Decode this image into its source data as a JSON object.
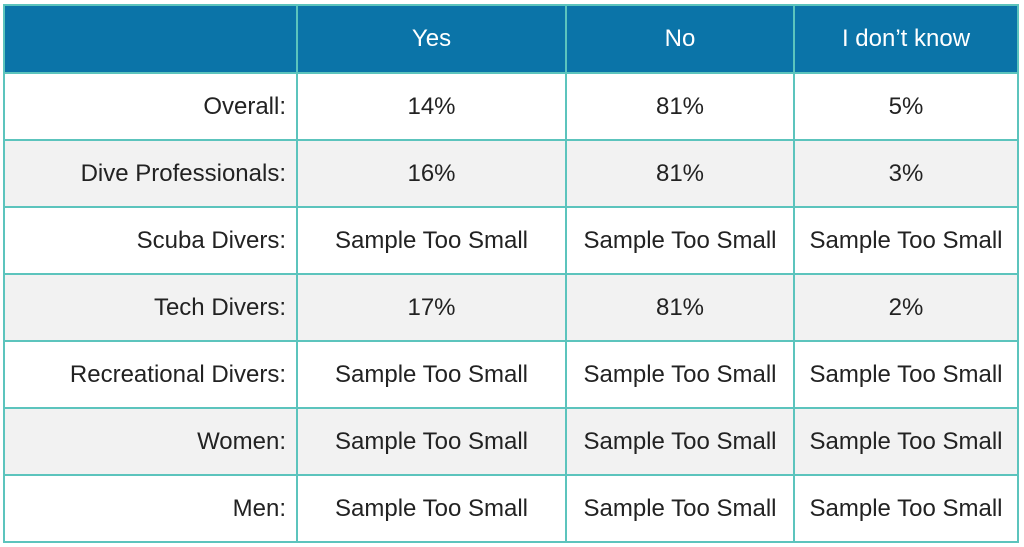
{
  "table": {
    "header": {
      "corner": "",
      "columns": [
        "Yes",
        "No",
        "I don’t know"
      ]
    },
    "rows": [
      {
        "label": "Overall:",
        "yes": "14%",
        "no": "81%",
        "unknown": "5%"
      },
      {
        "label": "Dive Professionals:",
        "yes": "16%",
        "no": "81%",
        "unknown": "3%"
      },
      {
        "label": "Scuba Divers:",
        "yes": "Sample Too Small",
        "no": "Sample Too Small",
        "unknown": "Sample Too Small"
      },
      {
        "label": "Tech Divers:",
        "yes": "17%",
        "no": "81%",
        "unknown": "2%"
      },
      {
        "label": "Recreational Divers:",
        "yes": "Sample Too Small",
        "no": "Sample Too Small",
        "unknown": "Sample Too Small"
      },
      {
        "label": "Women:",
        "yes": "Sample Too Small",
        "no": "Sample Too Small",
        "unknown": "Sample Too Small"
      },
      {
        "label": "Men:",
        "yes": "Sample Too Small",
        "no": "Sample Too Small",
        "unknown": "Sample Too Small"
      }
    ]
  },
  "colors": {
    "header_bg": "#0b74a8",
    "header_text": "#ffffff",
    "border": "#5cc4bd",
    "alt_row_bg": "#f2f2f2",
    "row_bg": "#ffffff",
    "text": "#222222"
  }
}
